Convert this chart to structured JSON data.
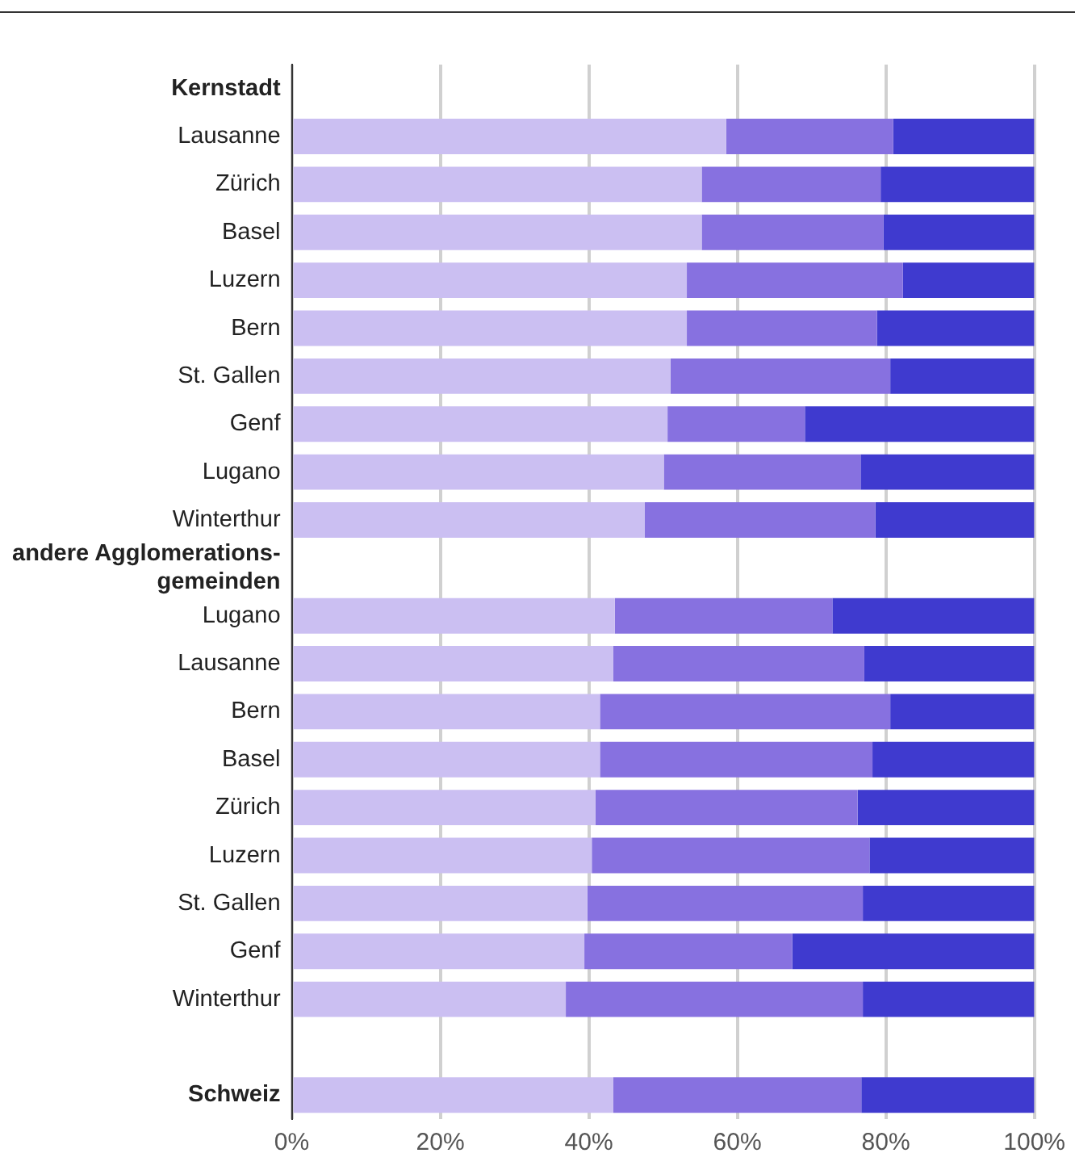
{
  "chart_data": {
    "type": "bar",
    "orientation": "horizontal",
    "stacked": true,
    "categories": [
      "Kernstadt",
      "Lausanne",
      "Zürich",
      "Basel",
      "Luzern",
      "Bern",
      "St. Gallen",
      "Genf",
      "Lugano",
      "Winterthur",
      "andere Agglomerations-gemeinden",
      "Lugano",
      "Lausanne",
      "Bern",
      "Basel",
      "Zürich",
      "Luzern",
      "St. Gallen",
      "Genf",
      "Winterthur",
      null,
      "Schweiz"
    ],
    "series": [
      {
        "color": "#cbbff2",
        "values": [
          null,
          58.5,
          55.2,
          55.2,
          53.2,
          53.2,
          51.0,
          50.6,
          50.1,
          47.5,
          null,
          43.5,
          43.3,
          41.5,
          41.5,
          40.9,
          40.4,
          39.8,
          39.4,
          36.9,
          null,
          43.3
        ]
      },
      {
        "color": "#8771e0",
        "values": [
          null,
          22.5,
          24.1,
          24.5,
          29.1,
          25.6,
          29.6,
          18.5,
          26.5,
          31.1,
          null,
          29.3,
          33.8,
          39.1,
          36.7,
          35.3,
          37.4,
          37.1,
          28.0,
          40.0,
          null,
          33.4
        ]
      },
      {
        "color": "#3f3acf",
        "values": [
          null,
          19.0,
          20.7,
          20.3,
          17.7,
          21.2,
          19.4,
          30.9,
          23.4,
          21.4,
          null,
          27.2,
          22.9,
          19.4,
          21.8,
          23.8,
          22.2,
          23.1,
          32.6,
          23.1,
          null,
          23.3
        ]
      }
    ],
    "xlim": [
      0,
      100
    ],
    "xticks": [
      {
        "value": 0,
        "label": "0%"
      },
      {
        "value": 20,
        "label": "20%"
      },
      {
        "value": 40,
        "label": "40%"
      },
      {
        "value": 60,
        "label": "60%"
      },
      {
        "value": 80,
        "label": "80%"
      },
      {
        "value": 100,
        "label": "100%"
      }
    ],
    "grid": "x",
    "legend": false
  }
}
